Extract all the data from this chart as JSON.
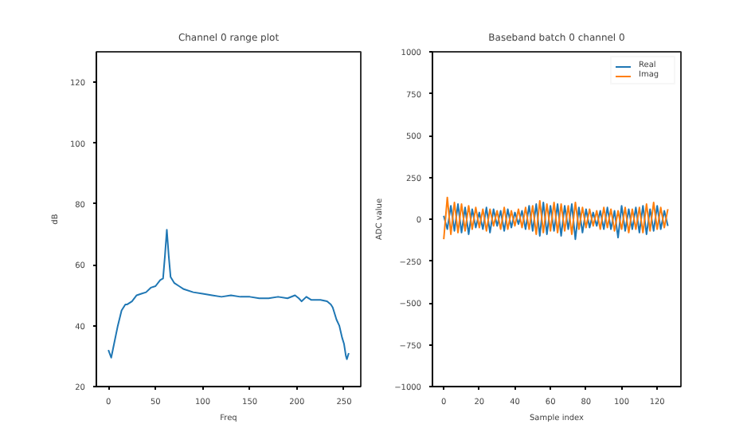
{
  "chart_data": [
    {
      "type": "line",
      "title": "Channel 0 range plot",
      "xlabel": "Freq",
      "ylabel": "dB",
      "x": [
        0,
        3,
        6,
        10,
        14,
        18,
        20,
        25,
        30,
        35,
        40,
        45,
        50,
        55,
        58,
        60,
        62,
        64,
        66,
        70,
        75,
        80,
        90,
        100,
        110,
        120,
        130,
        140,
        150,
        160,
        170,
        180,
        190,
        198,
        202,
        205,
        210,
        215,
        220,
        225,
        232,
        236,
        238,
        242,
        245,
        248,
        250,
        252,
        253,
        255
      ],
      "series": [
        {
          "color": "#1f77b4",
          "values": [
            32,
            29.5,
            34,
            40,
            45,
            47,
            47,
            48,
            50,
            50.5,
            51,
            52.5,
            53,
            55,
            55.5,
            63,
            71.5,
            63,
            56,
            54,
            53,
            52,
            51,
            50.5,
            50,
            49.5,
            50,
            49.5,
            49.5,
            49,
            49,
            49.5,
            49,
            50,
            49,
            48,
            49.5,
            48.5,
            48.5,
            48.5,
            48,
            47,
            46,
            42,
            40,
            36,
            34,
            30,
            29,
            31
          ]
        }
      ],
      "xlim": [
        -12.75,
        267.75
      ],
      "ylim": [
        20,
        130
      ],
      "xticks": [
        0,
        50,
        100,
        150,
        200,
        250
      ],
      "yticks": [
        20,
        40,
        60,
        80,
        100,
        120
      ],
      "grid": false,
      "legend": false
    },
    {
      "type": "line",
      "title": "Baseband batch 0 channel 0",
      "xlabel": "Sample index",
      "ylabel": "ADC value",
      "x": [
        0,
        2,
        4,
        6,
        8,
        10,
        12,
        14,
        16,
        18,
        20,
        22,
        24,
        26,
        28,
        30,
        32,
        34,
        36,
        38,
        40,
        42,
        44,
        46,
        48,
        50,
        52,
        54,
        56,
        58,
        60,
        62,
        64,
        66,
        68,
        70,
        72,
        74,
        76,
        78,
        80,
        82,
        84,
        86,
        88,
        90,
        92,
        94,
        96,
        98,
        100,
        102,
        104,
        106,
        108,
        110,
        112,
        114,
        116,
        118,
        120,
        122,
        124,
        126
      ],
      "series": [
        {
          "name": "Real",
          "color": "#1f77b4",
          "values": [
            20,
            -60,
            80,
            -70,
            90,
            -80,
            70,
            -90,
            60,
            -50,
            40,
            -60,
            70,
            -80,
            60,
            -40,
            50,
            -70,
            60,
            -50,
            40,
            -30,
            50,
            -60,
            80,
            -70,
            90,
            -100,
            100,
            -90,
            80,
            -70,
            90,
            -100,
            80,
            -60,
            90,
            -120,
            70,
            -80,
            60,
            -50,
            40,
            -40,
            50,
            -60,
            70,
            -60,
            50,
            -110,
            80,
            -70,
            60,
            -60,
            70,
            -80,
            80,
            -90,
            60,
            -70,
            80,
            -60,
            50,
            -40
          ]
        },
        {
          "name": "Imag",
          "color": "#ff7f0e",
          "values": [
            -120,
            130,
            -90,
            100,
            -80,
            90,
            -70,
            80,
            -60,
            70,
            -50,
            60,
            -70,
            60,
            -40,
            50,
            -60,
            70,
            -60,
            50,
            -40,
            60,
            -50,
            70,
            -60,
            80,
            -90,
            110,
            -80,
            90,
            -70,
            100,
            -80,
            90,
            -70,
            80,
            -90,
            100,
            -60,
            70,
            -50,
            60,
            -40,
            50,
            -60,
            70,
            -50,
            60,
            -70,
            50,
            -60,
            70,
            -80,
            60,
            -60,
            70,
            -80,
            90,
            -70,
            100,
            -60,
            70,
            -50,
            60
          ]
        }
      ],
      "xlim": [
        -6.35,
        133.35
      ],
      "ylim": [
        -1000,
        1000
      ],
      "xticks": [
        0,
        20,
        40,
        60,
        80,
        100,
        120
      ],
      "yticks": [
        -1000,
        -750,
        -500,
        -250,
        0,
        250,
        500,
        750,
        1000
      ],
      "grid": false,
      "legend": "top right"
    }
  ]
}
